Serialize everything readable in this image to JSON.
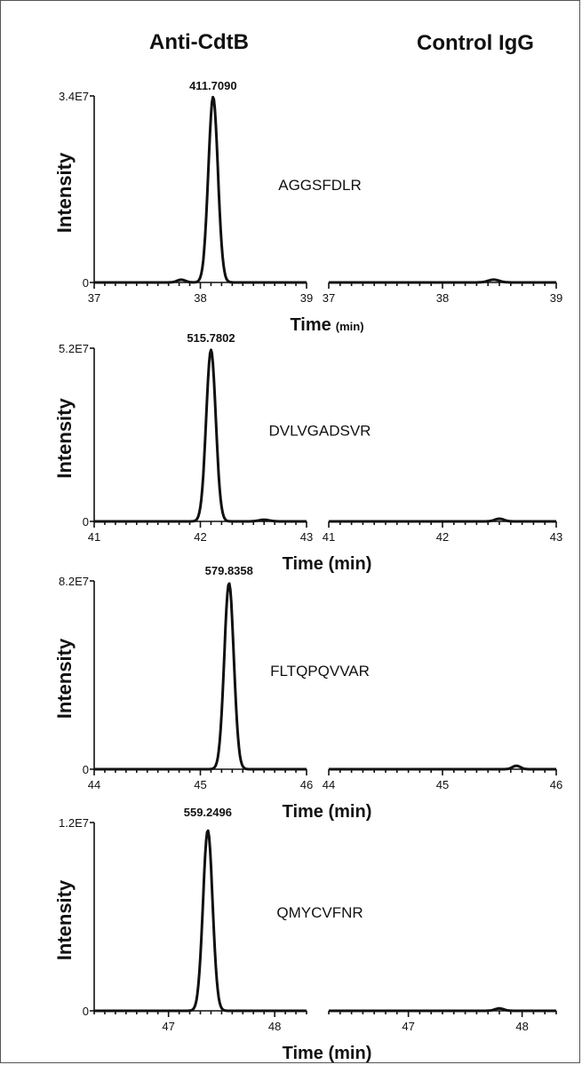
{
  "column_titles": {
    "left": "Anti-CdtB",
    "right": "Control IgG"
  },
  "chart_data": [
    {
      "type": "line",
      "peptide": "AGGSFDLR",
      "peak_mz_label": "411.7090",
      "ylabel": "Intensity",
      "xlabel_main": "Time",
      "xlabel_unit": "(min)",
      "ylim": [
        0,
        34000000
      ],
      "ylabels": [
        "0",
        "3.4E7"
      ],
      "xlim": [
        37,
        39
      ],
      "xticks": [
        37,
        38,
        39
      ],
      "xticklabels": [
        "37",
        "38",
        "39"
      ],
      "series": [
        {
          "panel": "Anti-CdtB",
          "peak_time": 38.12,
          "peak_intensity": 33800000,
          "sigma": 0.045,
          "minor": [
            {
              "t": 37.82,
              "h": 500000,
              "s": 0.04
            }
          ]
        },
        {
          "panel": "Control IgG",
          "peak_time": 38.45,
          "peak_intensity": 500000,
          "sigma": 0.05,
          "minor": []
        }
      ]
    },
    {
      "type": "line",
      "peptide": "DVLVGADSVR",
      "peak_mz_label": "515.7802",
      "ylabel": "Intensity",
      "xlabel_main": "Time (min)",
      "xlabel_unit": "",
      "ylim": [
        0,
        52000000
      ],
      "ylabels": [
        "0",
        "5.2E7"
      ],
      "xlim": [
        41,
        43
      ],
      "xticks": [
        41,
        42,
        43
      ],
      "xticklabels": [
        "41",
        "42",
        "43"
      ],
      "series": [
        {
          "panel": "Anti-CdtB",
          "peak_time": 42.1,
          "peak_intensity": 51500000,
          "sigma": 0.045,
          "minor": [
            {
              "t": 42.6,
              "h": 500000,
              "s": 0.05
            }
          ]
        },
        {
          "panel": "Control IgG",
          "peak_time": 42.5,
          "peak_intensity": 800000,
          "sigma": 0.04,
          "minor": []
        }
      ]
    },
    {
      "type": "line",
      "peptide": "FLTQPQVVAR",
      "peak_mz_label": "579.8358",
      "ylabel": "Intensity",
      "xlabel_main": "Time (min)",
      "xlabel_unit": "",
      "ylim": [
        0,
        82000000
      ],
      "ylabels": [
        "0",
        "8.2E7"
      ],
      "xlim": [
        44,
        46
      ],
      "xticks": [
        44,
        45,
        46
      ],
      "xticklabels": [
        "44",
        "45",
        "46"
      ],
      "series": [
        {
          "panel": "Anti-CdtB",
          "peak_time": 45.27,
          "peak_intensity": 81000000,
          "sigma": 0.045,
          "minor": []
        },
        {
          "panel": "Control IgG",
          "peak_time": 45.65,
          "peak_intensity": 1500000,
          "sigma": 0.035,
          "minor": []
        }
      ]
    },
    {
      "type": "line",
      "peptide": "QMYCVFNR",
      "peak_mz_label": "559.2496",
      "ylabel": "Intensity",
      "xlabel_main": "Time (min)",
      "xlabel_unit": "",
      "ylim": [
        0,
        12000000
      ],
      "ylabels": [
        "0",
        "1.2E7"
      ],
      "xlim": [
        46.3,
        48.3
      ],
      "xticks": [
        47,
        48
      ],
      "xticklabels": [
        "47",
        "48"
      ],
      "series": [
        {
          "panel": "Anti-CdtB",
          "peak_time": 47.37,
          "peak_intensity": 11500000,
          "sigma": 0.045,
          "minor": []
        },
        {
          "panel": "Control IgG",
          "peak_time": 47.8,
          "peak_intensity": 150000,
          "sigma": 0.04,
          "minor": []
        }
      ]
    }
  ]
}
